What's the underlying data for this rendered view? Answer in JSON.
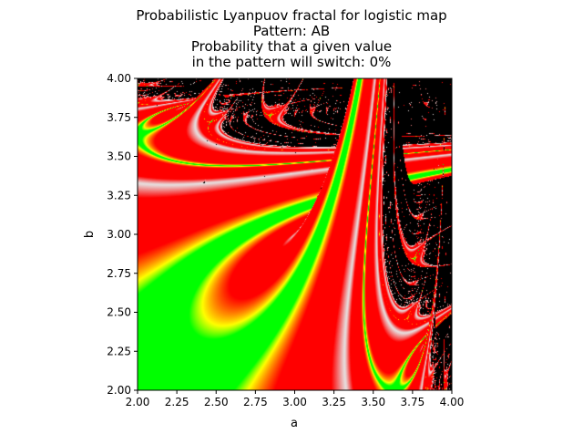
{
  "chart_data": {
    "type": "heatmap",
    "title_lines": [
      "Probabilistic Lyanpuov fractal for logistic map",
      "Pattern: AB",
      "Probability that a given value",
      "in the pattern will switch: 0%"
    ],
    "map": "logistic",
    "pattern": "AB",
    "switch_probability_percent": 0,
    "xlabel": "a",
    "ylabel": "b",
    "xlim": [
      2.0,
      4.0
    ],
    "ylim": [
      2.0,
      4.0
    ],
    "xticks": [
      "2.00",
      "2.25",
      "2.50",
      "2.75",
      "3.00",
      "3.25",
      "3.50",
      "3.75",
      "4.00"
    ],
    "yticks": [
      "2.00",
      "2.25",
      "2.50",
      "2.75",
      "3.00",
      "3.25",
      "3.50",
      "3.75",
      "4.00"
    ],
    "grid": false,
    "colors": {
      "chaotic": "#000000",
      "stable_deep": "#00ff00",
      "stable_mid": "#ffff00",
      "stable_shallow": "#ff0000",
      "near_zero": "#e6e6e6"
    }
  }
}
